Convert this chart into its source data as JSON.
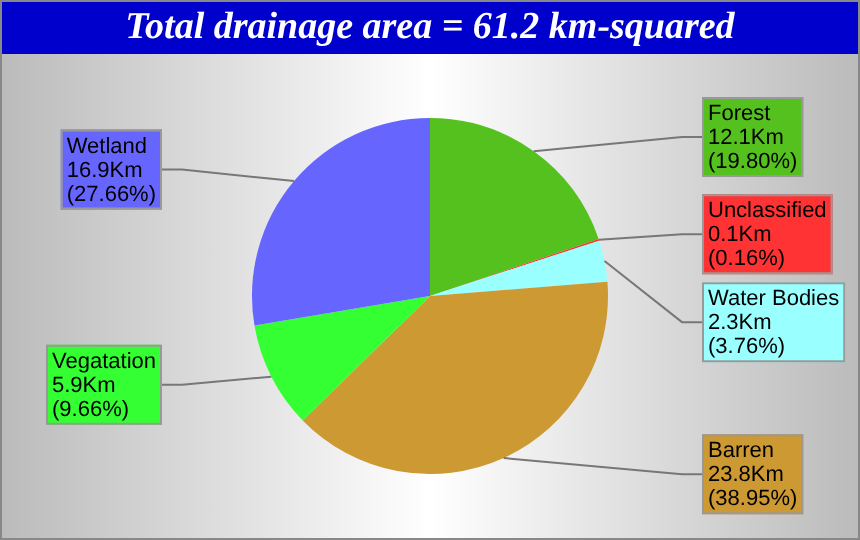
{
  "chart_data": {
    "type": "pie",
    "title": "Total drainage area = 61.2 km-squared",
    "categories": [
      "Forest",
      "Unclassified",
      "Water Bodies",
      "Barren",
      "Vegatation",
      "Wetland"
    ],
    "values": [
      12.1,
      0.1,
      2.3,
      23.8,
      5.9,
      16.9
    ],
    "colors": [
      "#55c11f",
      "#ff3333",
      "#99ffff",
      "#cc9933",
      "#33ff33",
      "#6666ff"
    ],
    "value_labels": [
      "12.1Km\n(19.80%)",
      "0.1Km\n(0.16%)",
      "2.3Km\n(3.76%)",
      "23.8Km\n(38.95%)",
      "5.9Km\n(9.66%)",
      "16.9Km\n(27.66%)"
    ]
  }
}
